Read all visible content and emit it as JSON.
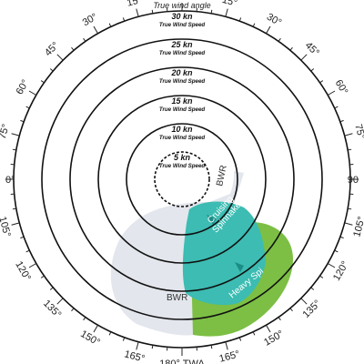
{
  "chart_data": {
    "type": "polar",
    "title": "True wind angle",
    "angle_axis": {
      "labels": [
        {
          "angle": 15,
          "text": "15°"
        },
        {
          "angle": 30,
          "text": "30°"
        },
        {
          "angle": 45,
          "text": "45°"
        },
        {
          "angle": 60,
          "text": "60°"
        },
        {
          "angle": 75,
          "text": "75°"
        },
        {
          "angle": 90,
          "text": "0°",
          "side": "left"
        },
        {
          "angle": 90,
          "text": "90",
          "side": "right"
        },
        {
          "angle": 105,
          "text": "105°"
        },
        {
          "angle": 120,
          "text": "120°"
        },
        {
          "angle": 135,
          "text": "135°"
        },
        {
          "angle": 150,
          "text": "150°"
        },
        {
          "angle": 165,
          "text": "165°"
        },
        {
          "angle": 180,
          "text": "180° TWA"
        }
      ]
    },
    "rings": [
      {
        "speed_label": "5 kn",
        "sub_label": "True Wind Speed",
        "dashed": true
      },
      {
        "speed_label": "10 kn",
        "sub_label": "True Wind Speed"
      },
      {
        "speed_label": "15 kn",
        "sub_label": "True Wind Speed"
      },
      {
        "speed_label": "20 kn",
        "sub_label": "True Wind Speed"
      },
      {
        "speed_label": "25 kn",
        "sub_label": "True Wind Speed"
      },
      {
        "speed_label": "30 kn",
        "sub_label": "True Wind Speed"
      }
    ],
    "zones": [
      {
        "name": "BWR",
        "color": "#e3e6ec",
        "twa_range": [
          90,
          180
        ],
        "tws_range": [
          5,
          30
        ]
      },
      {
        "name": "Cruising Spinnaker",
        "color": "#3cbcb2",
        "twa_range": [
          100,
          150
        ],
        "tws_range": [
          5,
          20
        ]
      },
      {
        "name": "Heavy Spi",
        "color": "#7cbf44",
        "twa_range": [
          110,
          170
        ],
        "tws_range": [
          10,
          30
        ]
      }
    ]
  }
}
